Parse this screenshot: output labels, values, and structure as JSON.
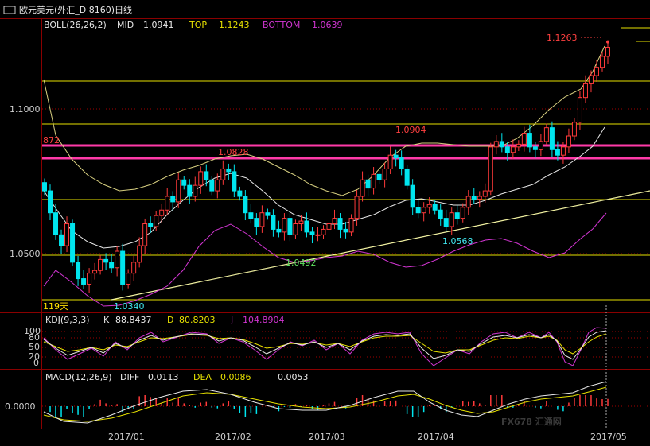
{
  "window": {
    "menu_icon": "window-menu-icon",
    "title": "欧元美元(外汇_D 8160)日线"
  },
  "boll": {
    "label": "BOLL(26,26,2)",
    "mid_label": "MID",
    "mid_value": "1.0941",
    "top_label": "TOP",
    "top_value": "1.1243",
    "bottom_label": "BOTTOM",
    "bottom_value": "1.0639"
  },
  "kdj": {
    "label": "KDJ(9,3,3)",
    "k_label": "K",
    "k_value": "88.8437",
    "d_label": "D",
    "d_value": "80.8203",
    "j_label": "J",
    "j_value": "104.8904"
  },
  "macd": {
    "label": "MACD(12,26,9)",
    "diff_label": "DIFF",
    "diff_value": "0.0113",
    "dea_label": "DEA",
    "dea_value": "0.0086",
    "macd_value": "0.0053"
  },
  "annotations": {
    "a_1_1263": "1.1263",
    "a_1_0904": "1.0904",
    "a_1_0828": "1.0828",
    "a_872": "872",
    "a_1_0568": "1.0568",
    "a_1_0492": "1.0492",
    "a_1_0340": "1.0340",
    "a_119": "119天"
  },
  "watermark": {
    "text": "FX678 汇通网"
  },
  "colors": {
    "up": "#ff3a3a",
    "down": "#00e5ee",
    "mid": "#e8e8e8",
    "band": "#e6e08a",
    "bottom_band": "#d235d2",
    "pink": "#ff3aa8",
    "level": "#e6e000",
    "grid": "#a00000"
  },
  "chart_data": [
    {
      "type": "candlestick",
      "title": "欧元美元(外汇_D 8160)日线",
      "indicator": "BOLL(26,26,2)",
      "ylim": [
        1.028,
        1.134
      ],
      "y_ticks": [
        "1.1000",
        "1.0500"
      ],
      "x_ticks": [
        "2017/01",
        "2017/02",
        "2017/03",
        "2017/04",
        "2017/05"
      ],
      "horizontal_levels": [
        1.1263,
        1.1215,
        1.1,
        1.0943,
        1.0872,
        1.0828,
        1.0685,
        1.05,
        1.034
      ],
      "trendline": {
        "from": [
          "2017/01",
          1.034
        ],
        "to": [
          "2017/05",
          1.0725
        ]
      },
      "close_path": [
        1.072,
        1.064,
        1.056,
        1.052,
        1.06,
        1.046,
        1.04,
        1.038,
        1.042,
        1.043,
        1.047,
        1.046,
        1.044,
        1.05,
        1.038,
        1.042,
        1.046,
        1.052,
        1.06,
        1.059,
        1.063,
        1.065,
        1.07,
        1.068,
        1.076,
        1.074,
        1.07,
        1.074,
        1.079,
        1.076,
        1.072,
        1.076,
        1.08,
        1.079,
        1.072,
        1.07,
        1.064,
        1.062,
        1.059,
        1.064,
        1.063,
        1.058,
        1.057,
        1.062,
        1.056,
        1.06,
        1.061,
        1.057,
        1.056,
        1.056,
        1.058,
        1.06,
        1.062,
        1.058,
        1.057,
        1.062,
        1.07,
        1.076,
        1.073,
        1.078,
        1.076,
        1.08,
        1.085,
        1.084,
        1.08,
        1.074,
        1.066,
        1.064,
        1.066,
        1.067,
        1.065,
        1.062,
        1.059,
        1.064,
        1.062,
        1.066,
        1.07,
        1.069,
        1.07,
        1.072,
        1.088,
        1.09,
        1.088,
        1.086,
        1.088,
        1.089,
        1.093,
        1.088,
        1.087,
        1.09,
        1.095,
        1.087,
        1.085,
        1.088,
        1.092,
        1.097,
        1.106,
        1.111,
        1.114,
        1.117,
        1.121,
        1.1243
      ]
    },
    {
      "type": "line",
      "title": "KDJ(9,3,3)",
      "y_ticks": [
        "100",
        "80",
        "50",
        "20",
        "0"
      ],
      "series": [
        {
          "name": "K",
          "last": 88.8437
        },
        {
          "name": "D",
          "last": 80.8203
        },
        {
          "name": "J",
          "last": 104.8904
        }
      ]
    },
    {
      "type": "bar",
      "title": "MACD(12,26,9)",
      "y_ticks": [
        "0.0000"
      ],
      "series": [
        {
          "name": "DIFF",
          "last": 0.0113
        },
        {
          "name": "DEA",
          "last": 0.0086
        },
        {
          "name": "MACD",
          "last": 0.0053
        }
      ]
    }
  ]
}
